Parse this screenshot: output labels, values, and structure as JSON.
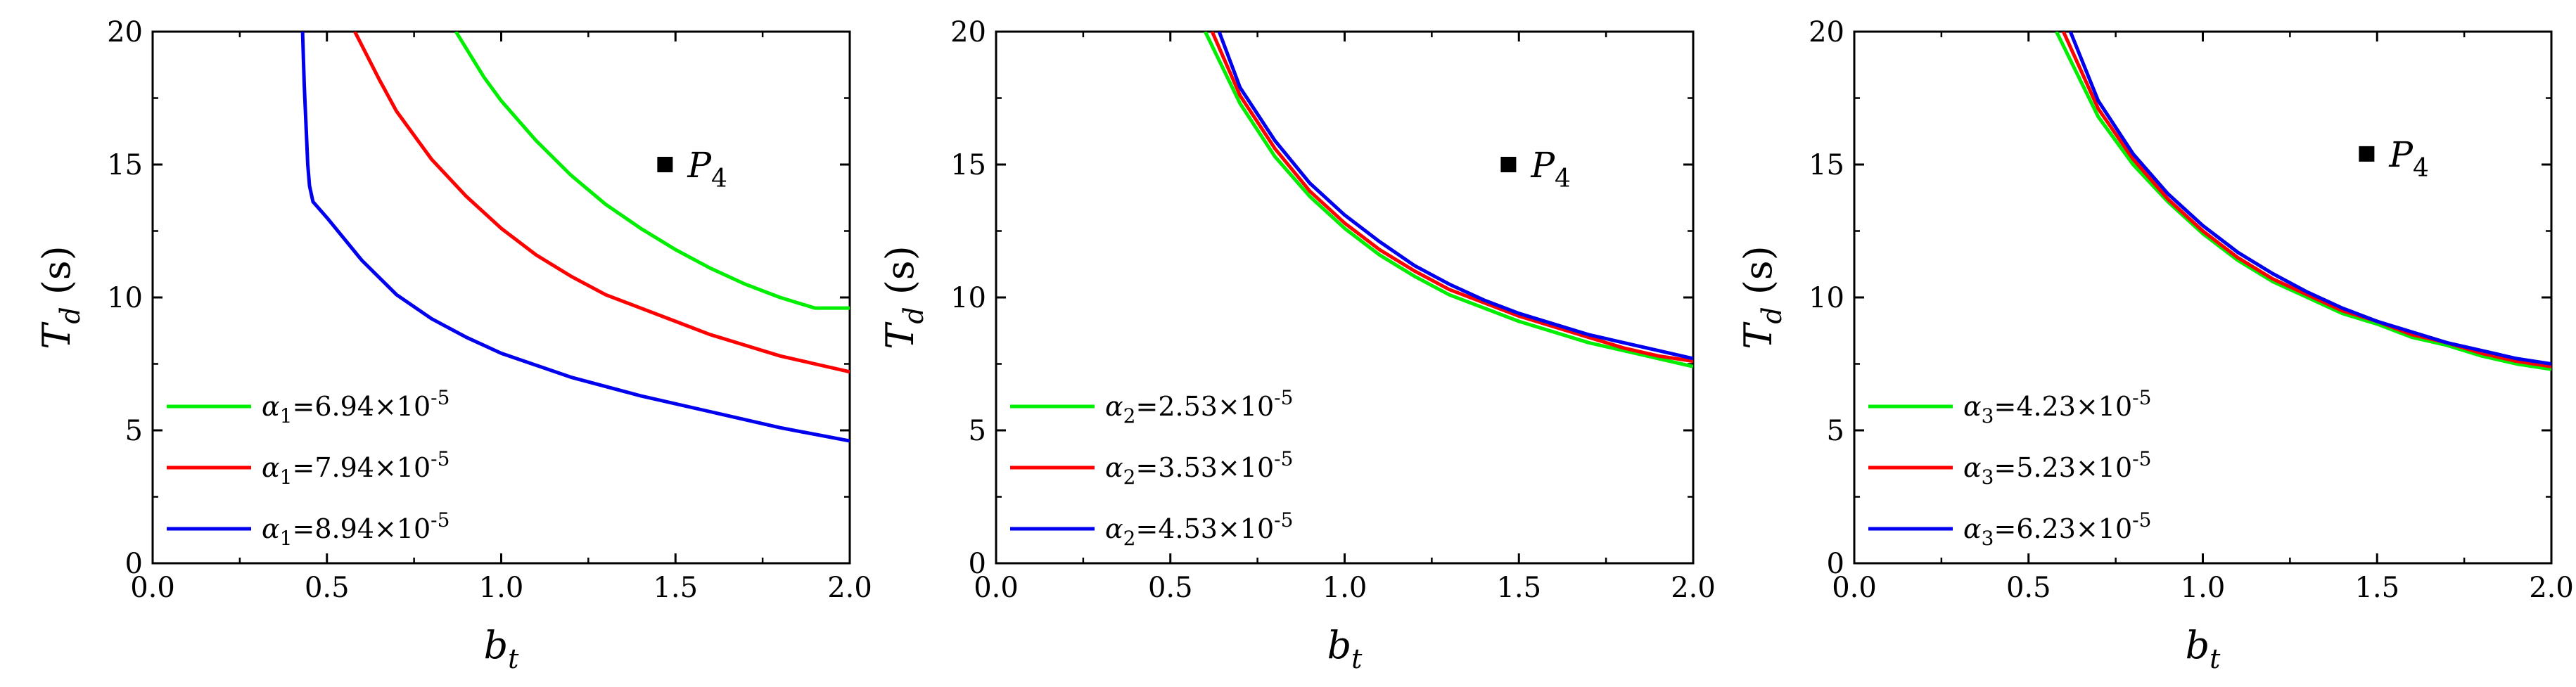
{
  "chart_data": [
    {
      "type": "line",
      "xlim": [
        0.0,
        2.0
      ],
      "ylim": [
        0,
        20
      ],
      "xticks": [
        "0.0",
        "0.5",
        "1.0",
        "1.5",
        "2.0"
      ],
      "yticks": [
        "0",
        "5",
        "10",
        "15",
        "20"
      ],
      "xlabel": {
        "main": "b",
        "sub": "t"
      },
      "ylabel": {
        "main": "T",
        "sub": "d",
        "unit": " (s)"
      },
      "legend_position": "lower-left",
      "point": {
        "name": "P",
        "sub": "4",
        "x": 1.47,
        "y": 15.0
      },
      "series": [
        {
          "name": "α1=6.94×10-5",
          "greek": "α",
          "sub": "1",
          "mantissa": "=6.94×10",
          "exp": "-5",
          "color": "#00ee00",
          "x": [
            0.87,
            0.95,
            1.0,
            1.1,
            1.2,
            1.3,
            1.4,
            1.5,
            1.6,
            1.7,
            1.8,
            1.9,
            2.0
          ],
          "y": [
            20.0,
            18.3,
            17.4,
            15.9,
            14.6,
            13.5,
            12.6,
            11.8,
            11.1,
            10.5,
            10.0,
            9.6,
            9.6
          ]
        },
        {
          "name": "α1=7.94×10-5",
          "greek": "α",
          "sub": "1",
          "mantissa": "=7.94×10",
          "exp": "-5",
          "color": "#ff0000",
          "x": [
            0.58,
            0.65,
            0.7,
            0.8,
            0.9,
            1.0,
            1.1,
            1.2,
            1.3,
            1.4,
            1.5,
            1.6,
            1.7,
            1.8,
            1.9,
            2.0
          ],
          "y": [
            20.0,
            18.2,
            17.0,
            15.2,
            13.8,
            12.6,
            11.6,
            10.8,
            10.1,
            9.6,
            9.1,
            8.6,
            8.2,
            7.8,
            7.5,
            7.2
          ]
        },
        {
          "name": "α1=8.94×10-5",
          "greek": "α",
          "sub": "1",
          "mantissa": "=8.94×10",
          "exp": "-5",
          "color": "#0000ee",
          "x": [
            0.43,
            0.435,
            0.44,
            0.445,
            0.45,
            0.46,
            0.5,
            0.6,
            0.7,
            0.8,
            0.9,
            1.0,
            1.2,
            1.4,
            1.6,
            1.8,
            2.0
          ],
          "y": [
            20.0,
            18.0,
            16.5,
            15.0,
            14.2,
            13.6,
            13.0,
            11.4,
            10.1,
            9.2,
            8.5,
            7.9,
            7.0,
            6.3,
            5.7,
            5.1,
            4.6
          ]
        }
      ]
    },
    {
      "type": "line",
      "xlim": [
        0.0,
        2.0
      ],
      "ylim": [
        0,
        20
      ],
      "xticks": [
        "0.0",
        "0.5",
        "1.0",
        "1.5",
        "2.0"
      ],
      "yticks": [
        "0",
        "5",
        "10",
        "15",
        "20"
      ],
      "xlabel": {
        "main": "b",
        "sub": "t"
      },
      "ylabel": {
        "main": "T",
        "sub": "d",
        "unit": " (s)"
      },
      "legend_position": "lower-left",
      "point": {
        "name": "P",
        "sub": "4",
        "x": 1.47,
        "y": 15.0
      },
      "series": [
        {
          "name": "α2=2.53×10-5",
          "greek": "α",
          "sub": "2",
          "mantissa": "=2.53×10",
          "exp": "-5",
          "color": "#00ee00",
          "x": [
            0.6,
            0.7,
            0.8,
            0.9,
            1.0,
            1.1,
            1.2,
            1.3,
            1.4,
            1.5,
            1.6,
            1.7,
            1.8,
            1.9,
            2.0
          ],
          "y": [
            20.0,
            17.3,
            15.3,
            13.8,
            12.6,
            11.6,
            10.8,
            10.1,
            9.6,
            9.1,
            8.7,
            8.3,
            8.0,
            7.7,
            7.4
          ]
        },
        {
          "name": "α2=3.53×10-5",
          "greek": "α",
          "sub": "2",
          "mantissa": "=3.53×10",
          "exp": "-5",
          "color": "#ff0000",
          "x": [
            0.62,
            0.7,
            0.8,
            0.9,
            1.0,
            1.1,
            1.2,
            1.3,
            1.4,
            1.5,
            1.6,
            1.7,
            1.8,
            1.9,
            2.0
          ],
          "y": [
            20.0,
            17.6,
            15.6,
            14.0,
            12.8,
            11.8,
            11.0,
            10.3,
            9.8,
            9.3,
            8.9,
            8.5,
            8.1,
            7.8,
            7.6
          ]
        },
        {
          "name": "α2=4.53×10-5",
          "greek": "α",
          "sub": "2",
          "mantissa": "=4.53×10",
          "exp": "-5",
          "color": "#0000ee",
          "x": [
            0.64,
            0.7,
            0.8,
            0.9,
            1.0,
            1.1,
            1.2,
            1.3,
            1.4,
            1.5,
            1.6,
            1.7,
            1.8,
            1.9,
            2.0
          ],
          "y": [
            20.0,
            17.9,
            15.9,
            14.3,
            13.1,
            12.1,
            11.2,
            10.5,
            9.9,
            9.4,
            9.0,
            8.6,
            8.3,
            8.0,
            7.7
          ]
        }
      ]
    },
    {
      "type": "line",
      "xlim": [
        0.0,
        2.0
      ],
      "ylim": [
        0,
        20
      ],
      "xticks": [
        "0.0",
        "0.5",
        "1.0",
        "1.5",
        "2.0"
      ],
      "yticks": [
        "0",
        "5",
        "10",
        "15",
        "20"
      ],
      "xlabel": {
        "main": "b",
        "sub": "t"
      },
      "ylabel": {
        "main": "T",
        "sub": "d",
        "unit": " (s)"
      },
      "legend_position": "lower-left",
      "point": {
        "name": "P",
        "sub": "4",
        "x": 1.47,
        "y": 15.4
      },
      "series": [
        {
          "name": "α3=4.23×10-5",
          "greek": "α",
          "sub": "3",
          "mantissa": "=4.23×10",
          "exp": "-5",
          "color": "#00ee00",
          "x": [
            0.58,
            0.7,
            0.8,
            0.9,
            1.0,
            1.1,
            1.2,
            1.3,
            1.4,
            1.5,
            1.6,
            1.7,
            1.8,
            1.9,
            2.0
          ],
          "y": [
            20.0,
            16.8,
            15.0,
            13.6,
            12.4,
            11.4,
            10.6,
            10.0,
            9.4,
            9.0,
            8.5,
            8.2,
            7.8,
            7.5,
            7.3
          ]
        },
        {
          "name": "α3=5.23×10-5",
          "greek": "α",
          "sub": "3",
          "mantissa": "=5.23×10",
          "exp": "-5",
          "color": "#ff0000",
          "x": [
            0.6,
            0.7,
            0.8,
            0.9,
            1.0,
            1.1,
            1.2,
            1.3,
            1.4,
            1.5,
            1.6,
            1.7,
            1.8,
            1.9,
            2.0
          ],
          "y": [
            20.0,
            17.1,
            15.2,
            13.7,
            12.5,
            11.5,
            10.7,
            10.1,
            9.5,
            9.1,
            8.6,
            8.3,
            7.9,
            7.6,
            7.4
          ]
        },
        {
          "name": "α3=6.23×10-5",
          "greek": "α",
          "sub": "3",
          "mantissa": "=6.23×10",
          "exp": "-5",
          "color": "#0000ee",
          "x": [
            0.62,
            0.7,
            0.8,
            0.9,
            1.0,
            1.1,
            1.2,
            1.3,
            1.4,
            1.5,
            1.6,
            1.7,
            1.8,
            1.9,
            2.0
          ],
          "y": [
            20.0,
            17.4,
            15.4,
            13.9,
            12.7,
            11.7,
            10.9,
            10.2,
            9.6,
            9.1,
            8.7,
            8.3,
            8.0,
            7.7,
            7.5
          ]
        }
      ]
    }
  ]
}
